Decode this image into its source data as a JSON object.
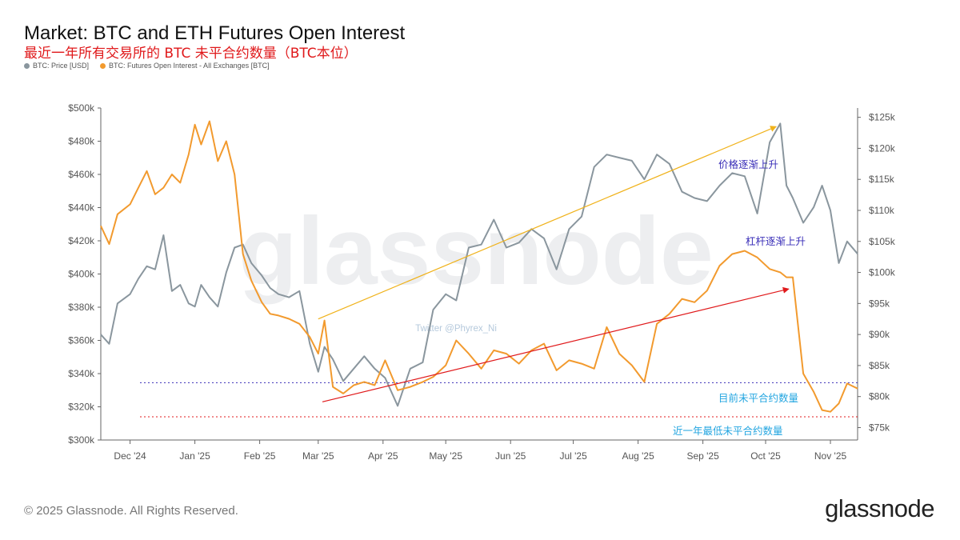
{
  "header": {
    "title": "Market: BTC and ETH Futures Open Interest",
    "subtitle": "最近一年所有交易所的 BTC 未平合约数量（BTC本位）"
  },
  "legend": [
    {
      "label": "BTC: Price [USD]",
      "color": "#8a969e"
    },
    {
      "label": "BTC: Futures Open Interest - All Exchanges [BTC]",
      "color": "#f29a2e"
    }
  ],
  "footer": {
    "copyright": "© 2025 Glassnode. All Rights Reserved.",
    "brand": "glassnode"
  },
  "watermark": {
    "text": "glassnode",
    "credit": "Twitter @Phyrex_Ni"
  },
  "annotations": {
    "price_rising": "价格逐渐上升",
    "leverage_rising": "杠杆逐渐上升",
    "current_oi": "目前未平合约数量",
    "lowest_oi": "近一年最低未平合约数量"
  },
  "chart_data": {
    "type": "line",
    "x_axis": {
      "labels": [
        "Dec '24",
        "Jan '25",
        "Feb '25",
        "Mar '25",
        "Apr '25",
        "May '25",
        "Jun '25",
        "Jul '25",
        "Aug '25",
        "Sep '25",
        "Oct '25",
        "Nov '25"
      ],
      "range": [
        "2024-11-17",
        "2025-11-14"
      ]
    },
    "y_left": {
      "label": "",
      "ticks": [
        "$300k",
        "$320k",
        "$340k",
        "$360k",
        "$380k",
        "$400k",
        "$420k",
        "$440k",
        "$460k",
        "$480k",
        "$500k"
      ],
      "range": [
        300000,
        500000
      ]
    },
    "y_right": {
      "label": "",
      "ticks": [
        "$75k",
        "$80k",
        "$85k",
        "$90k",
        "$95k",
        "$100k",
        "$105k",
        "$110k",
        "$115k",
        "$120k",
        "$125k"
      ],
      "range": [
        73000,
        126500
      ]
    },
    "series": [
      {
        "name": "BTC: Futures Open Interest - All Exchanges [BTC]",
        "axis": "left",
        "color": "#f29a2e",
        "x": [
          "2024-11-17",
          "2024-11-21",
          "2024-11-25",
          "2024-12-01",
          "2024-12-05",
          "2024-12-09",
          "2024-12-13",
          "2024-12-17",
          "2024-12-21",
          "2024-12-25",
          "2024-12-29",
          "2025-01-01",
          "2025-01-04",
          "2025-01-08",
          "2025-01-12",
          "2025-01-16",
          "2025-01-20",
          "2025-01-24",
          "2025-01-28",
          "2025-02-02",
          "2025-02-06",
          "2025-02-10",
          "2025-02-15",
          "2025-02-20",
          "2025-02-25",
          "2025-03-01",
          "2025-03-04",
          "2025-03-08",
          "2025-03-13",
          "2025-03-18",
          "2025-03-23",
          "2025-03-28",
          "2025-04-02",
          "2025-04-08",
          "2025-04-14",
          "2025-04-20",
          "2025-04-25",
          "2025-05-01",
          "2025-05-06",
          "2025-05-12",
          "2025-05-18",
          "2025-05-24",
          "2025-05-30",
          "2025-06-05",
          "2025-06-11",
          "2025-06-17",
          "2025-06-23",
          "2025-06-29",
          "2025-07-05",
          "2025-07-11",
          "2025-07-17",
          "2025-07-23",
          "2025-07-29",
          "2025-08-04",
          "2025-08-10",
          "2025-08-16",
          "2025-08-22",
          "2025-08-28",
          "2025-09-03",
          "2025-09-09",
          "2025-09-15",
          "2025-09-21",
          "2025-09-27",
          "2025-10-03",
          "2025-10-08",
          "2025-10-11",
          "2025-10-14",
          "2025-10-19",
          "2025-10-24",
          "2025-10-28",
          "2025-11-01",
          "2025-11-05",
          "2025-11-09",
          "2025-11-14"
        ],
        "values": [
          429000,
          418000,
          436000,
          442000,
          452000,
          462000,
          448000,
          452000,
          460000,
          455000,
          472000,
          490000,
          478000,
          492000,
          468000,
          480000,
          460000,
          412000,
          396000,
          383000,
          376000,
          375000,
          373000,
          370000,
          362000,
          352000,
          372000,
          332000,
          328000,
          333000,
          335000,
          333000,
          348000,
          330000,
          332000,
          335000,
          338000,
          345000,
          360000,
          352000,
          343000,
          354000,
          352000,
          346000,
          354000,
          358000,
          342000,
          348000,
          346000,
          343000,
          368000,
          352000,
          345000,
          335000,
          370000,
          376000,
          385000,
          383000,
          390000,
          405000,
          412000,
          414000,
          410000,
          403000,
          401000,
          398000,
          398000,
          340000,
          329000,
          318000,
          317000,
          322000,
          334000,
          331000
        ]
      },
      {
        "name": "BTC: Price [USD]",
        "axis": "right",
        "color": "#8a969e",
        "x": [
          "2024-11-17",
          "2024-11-21",
          "2024-11-25",
          "2024-12-01",
          "2024-12-05",
          "2024-12-09",
          "2024-12-13",
          "2024-12-17",
          "2024-12-21",
          "2024-12-25",
          "2024-12-29",
          "2025-01-01",
          "2025-01-04",
          "2025-01-08",
          "2025-01-12",
          "2025-01-16",
          "2025-01-20",
          "2025-01-24",
          "2025-01-28",
          "2025-02-02",
          "2025-02-06",
          "2025-02-10",
          "2025-02-15",
          "2025-02-20",
          "2025-02-25",
          "2025-03-01",
          "2025-03-04",
          "2025-03-08",
          "2025-03-13",
          "2025-03-18",
          "2025-03-23",
          "2025-03-28",
          "2025-04-02",
          "2025-04-08",
          "2025-04-14",
          "2025-04-20",
          "2025-04-25",
          "2025-05-01",
          "2025-05-06",
          "2025-05-12",
          "2025-05-18",
          "2025-05-24",
          "2025-05-30",
          "2025-06-05",
          "2025-06-11",
          "2025-06-17",
          "2025-06-23",
          "2025-06-29",
          "2025-07-05",
          "2025-07-11",
          "2025-07-17",
          "2025-07-23",
          "2025-07-29",
          "2025-08-04",
          "2025-08-10",
          "2025-08-16",
          "2025-08-22",
          "2025-08-28",
          "2025-09-03",
          "2025-09-09",
          "2025-09-15",
          "2025-09-21",
          "2025-09-27",
          "2025-10-03",
          "2025-10-08",
          "2025-10-11",
          "2025-10-14",
          "2025-10-19",
          "2025-10-24",
          "2025-10-28",
          "2025-11-01",
          "2025-11-05",
          "2025-11-09",
          "2025-11-14"
        ],
        "values": [
          90000,
          88500,
          95000,
          96500,
          99000,
          101000,
          100500,
          106000,
          97000,
          98000,
          95000,
          94500,
          98000,
          96000,
          94500,
          100000,
          104000,
          104500,
          101500,
          99500,
          97500,
          96500,
          96000,
          97000,
          88500,
          84000,
          88000,
          86000,
          82500,
          84500,
          86500,
          84500,
          83000,
          78500,
          84500,
          85500,
          94000,
          96500,
          95500,
          104000,
          104500,
          108500,
          104000,
          104800,
          107000,
          105500,
          100500,
          107000,
          109000,
          117000,
          119000,
          118500,
          118000,
          115000,
          119000,
          117500,
          113000,
          112000,
          111500,
          114000,
          116000,
          115500,
          109500,
          121000,
          124000,
          114000,
          112000,
          108000,
          110500,
          114000,
          110000,
          101500,
          105000,
          103000
        ]
      }
    ],
    "reference_lines": [
      {
        "label": "目前未平合约数量",
        "value": 334500,
        "axis": "left",
        "color": "#3a2fb8",
        "style": "dotted"
      },
      {
        "label": "近一年最低未平合约数量",
        "value": 314000,
        "axis": "left",
        "color": "#e0191b",
        "style": "dotted"
      }
    ],
    "trend_lines": [
      {
        "label": "价格逐渐上升",
        "from": [
          "2025-03-01",
          92500
        ],
        "to": [
          "2025-10-06",
          123500
        ],
        "axis": "right",
        "color": "#f0b21a"
      },
      {
        "label": "杠杆逐渐上升",
        "from": [
          "2025-03-03",
          323000
        ],
        "to": [
          "2025-10-12",
          391000
        ],
        "axis": "left",
        "color": "#e0191b"
      }
    ],
    "grid": false,
    "legend_position": "top-left"
  }
}
